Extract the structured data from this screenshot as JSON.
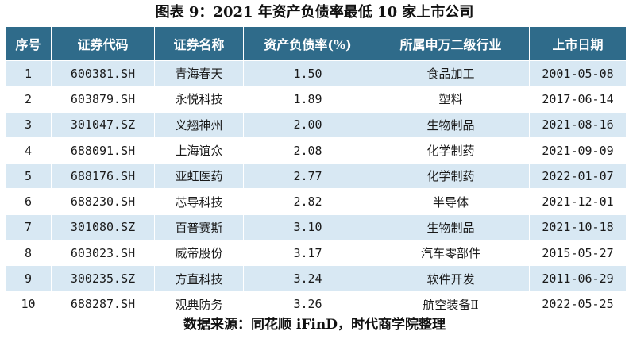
{
  "title": "图表 9：2021 年资产负债率最低 10 家上市公司",
  "table": {
    "headers": [
      "序号",
      "证券代码",
      "证券名称",
      "资产负债率(%)",
      "所属申万二级行业",
      "上市日期"
    ],
    "rows": [
      [
        "1",
        "600381.SH",
        "青海春天",
        "1.50",
        "食品加工",
        "2001-05-08"
      ],
      [
        "2",
        "603879.SH",
        "永悦科技",
        "1.89",
        "塑料",
        "2017-06-14"
      ],
      [
        "3",
        "301047.SZ",
        "义翘神州",
        "2.00",
        "生物制品",
        "2021-08-16"
      ],
      [
        "4",
        "688091.SH",
        "上海谊众",
        "2.08",
        "化学制药",
        "2021-09-09"
      ],
      [
        "5",
        "688176.SH",
        "亚虹医药",
        "2.77",
        "化学制药",
        "2022-01-07"
      ],
      [
        "6",
        "688230.SH",
        "芯导科技",
        "2.82",
        "半导体",
        "2021-12-01"
      ],
      [
        "7",
        "301080.SZ",
        "百普赛斯",
        "3.10",
        "生物制品",
        "2021-10-18"
      ],
      [
        "8",
        "603023.SH",
        "威帝股份",
        "3.17",
        "汽车零部件",
        "2015-05-27"
      ],
      [
        "9",
        "300235.SZ",
        "方直科技",
        "3.24",
        "软件开发",
        "2011-06-29"
      ],
      [
        "10",
        "688287.SH",
        "观典防务",
        "3.26",
        "航空装备Ⅱ",
        "2022-05-25"
      ]
    ]
  },
  "source": "数据来源：同花顺 iFinD，时代商学院整理",
  "colors": {
    "header_bg": "#2f6b8a",
    "stripe_bg": "#d8e8f3"
  }
}
